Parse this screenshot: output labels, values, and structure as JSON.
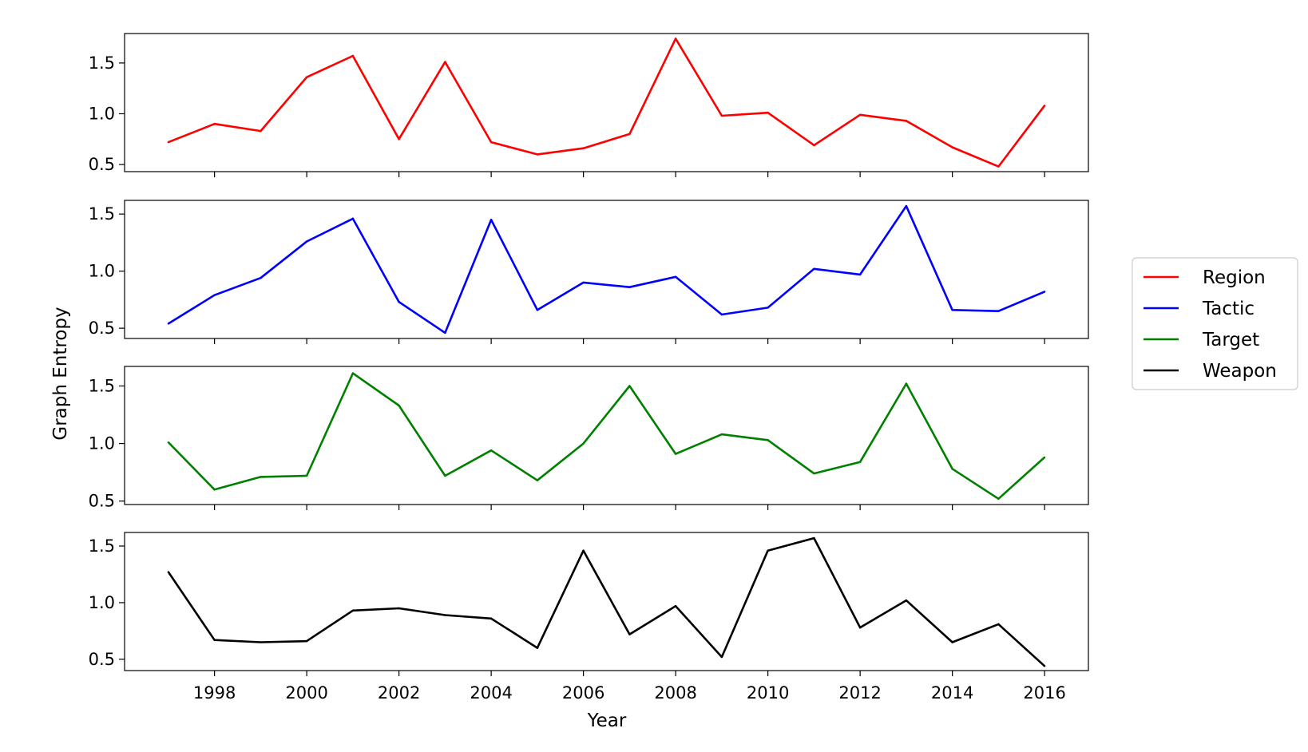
{
  "chart_data": {
    "type": "line",
    "xlabel": "Year",
    "ylabel": "Graph Entropy",
    "x": [
      1997,
      1998,
      1999,
      2000,
      2001,
      2002,
      2003,
      2004,
      2005,
      2006,
      2007,
      2008,
      2009,
      2010,
      2011,
      2012,
      2013,
      2014,
      2015,
      2016
    ],
    "x_ticks": [
      1998,
      2000,
      2002,
      2004,
      2006,
      2008,
      2010,
      2012,
      2014,
      2016
    ],
    "y_ticks": [
      0.5,
      1.0,
      1.5
    ],
    "y_tick_labels": [
      "0.5",
      "1.0",
      "1.5"
    ],
    "xlim": [
      1996.05,
      2016.95
    ],
    "grid": false,
    "legend_position": "right",
    "series": [
      {
        "name": "Region",
        "color": "#ff0000",
        "ylim": [
          0.43,
          1.79
        ],
        "values": [
          0.72,
          0.9,
          0.83,
          1.36,
          1.57,
          0.75,
          1.51,
          0.72,
          0.6,
          0.66,
          0.8,
          1.74,
          0.98,
          1.01,
          0.69,
          0.99,
          0.93,
          0.67,
          0.48,
          1.08
        ]
      },
      {
        "name": "Tactic",
        "color": "#0000ff",
        "ylim": [
          0.41,
          1.62
        ],
        "values": [
          0.54,
          0.79,
          0.94,
          1.26,
          1.46,
          0.73,
          0.46,
          1.45,
          0.66,
          0.9,
          0.86,
          0.95,
          0.62,
          0.68,
          1.02,
          0.97,
          1.57,
          0.66,
          0.65,
          0.82
        ]
      },
      {
        "name": "Target",
        "color": "#008000",
        "ylim": [
          0.47,
          1.67
        ],
        "values": [
          1.01,
          0.6,
          0.71,
          0.72,
          1.61,
          1.33,
          0.72,
          0.94,
          0.68,
          1.0,
          1.5,
          0.91,
          1.08,
          1.03,
          0.74,
          0.84,
          1.52,
          0.78,
          0.52,
          0.88
        ]
      },
      {
        "name": "Weapon",
        "color": "#000000",
        "ylim": [
          0.4,
          1.62
        ],
        "values": [
          1.27,
          0.67,
          0.65,
          0.66,
          0.93,
          0.95,
          0.89,
          0.86,
          0.6,
          1.46,
          0.72,
          0.97,
          0.52,
          1.46,
          1.57,
          0.78,
          1.02,
          0.65,
          0.81,
          0.44
        ]
      }
    ]
  }
}
